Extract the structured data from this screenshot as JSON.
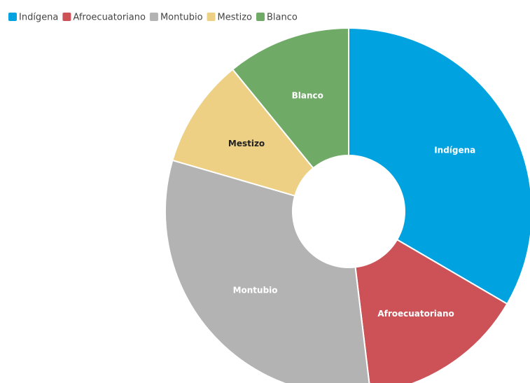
{
  "chart_data": {
    "type": "donut",
    "categories": [
      "Indígena",
      "Afroecuatoriano",
      "Montubio",
      "Mestizo",
      "Blanco"
    ],
    "values": [
      33.4,
      14.7,
      31.4,
      9.6,
      10.9
    ],
    "colors": [
      "#00a3e0",
      "#cd5257",
      "#b3b3b3",
      "#edd083",
      "#6fab66"
    ],
    "label_colors": [
      "#ffffff",
      "#ffffff",
      "#ffffff",
      "#222222",
      "#ffffff"
    ],
    "legend": "top-left"
  }
}
